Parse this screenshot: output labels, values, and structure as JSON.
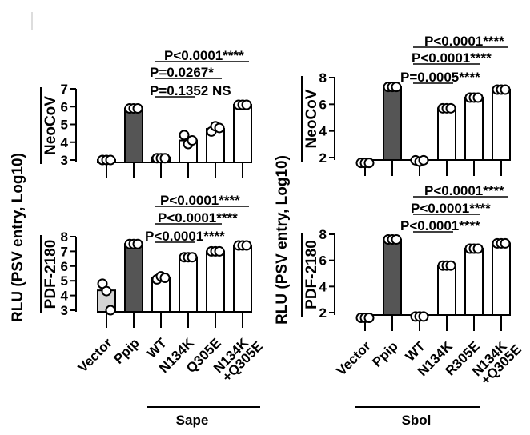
{
  "figure": {
    "ylabel": "RLU (PSV entry, Log10)",
    "panels_A_categories": [
      "Vector",
      "Ppip",
      "WT",
      "N134K",
      "Q305E",
      "N134K\n+Q305E"
    ],
    "panels_B_categories": [
      "Vector",
      "Ppip",
      "WT",
      "N134K",
      "R305E",
      "N134K\n+Q305E"
    ],
    "group_A": "Sape",
    "group_B": "Sbol"
  },
  "chart_data": [
    {
      "type": "bar",
      "title": "NeoCoV",
      "ylabel": "RLU (PSV entry, Log10)",
      "ylim": [
        2.3,
        7
      ],
      "yticks": [
        3,
        4,
        5,
        6,
        7
      ],
      "categories": [
        "Vector",
        "Ppip",
        "WT",
        "N134K",
        "Q305E",
        "N134K\n+Q305E"
      ],
      "values": [
        3.0,
        5.9,
        3.15,
        4.1,
        4.75,
        6.1
      ],
      "points": [
        [
          3.0,
          3.0,
          3.0
        ],
        [
          5.9,
          5.9,
          5.9
        ],
        [
          3.1,
          3.1,
          3.1
        ],
        [
          4.4,
          3.9,
          4.1
        ],
        [
          4.6,
          4.9,
          4.8
        ],
        [
          6.1,
          6.1,
          6.1
        ]
      ],
      "bar_fills": [
        "#d4d4d4",
        "#555555",
        "#ffffff",
        "#ffffff",
        "#ffffff",
        "#ffffff"
      ],
      "annotations": [
        {
          "text": "P<0.0001****",
          "from": "WT",
          "to": "N134K\n+Q305E"
        },
        {
          "text": "P=0.0267*",
          "from": "WT",
          "to": "Q305E"
        },
        {
          "text": "P=0.1352 NS",
          "from": "WT",
          "to": "N134K"
        }
      ]
    },
    {
      "type": "bar",
      "title": "PDF-2180",
      "ylabel": "RLU (PSV entry, Log10)",
      "ylim": [
        2.3,
        8
      ],
      "yticks": [
        3,
        4,
        5,
        6,
        7,
        8
      ],
      "categories": [
        "Vector",
        "Ppip",
        "WT",
        "N134K",
        "Q305E",
        "N134K\n+Q305E"
      ],
      "values": [
        4.35,
        7.5,
        5.2,
        6.6,
        7.0,
        7.4
      ],
      "points": [
        [
          4.8,
          4.3,
          3.0
        ],
        [
          7.5,
          7.5,
          7.5
        ],
        [
          5.1,
          5.3,
          5.2
        ],
        [
          6.6,
          6.6,
          6.6
        ],
        [
          7.0,
          7.0,
          7.0
        ],
        [
          7.4,
          7.4,
          7.4
        ]
      ],
      "bar_fills": [
        "#d4d4d4",
        "#555555",
        "#ffffff",
        "#ffffff",
        "#ffffff",
        "#ffffff"
      ],
      "annotations": [
        {
          "text": "P<0.0001****",
          "from": "WT",
          "to": "N134K\n+Q305E"
        },
        {
          "text": "P<0.0001****",
          "from": "WT",
          "to": "Q305E"
        },
        {
          "text": "P<0.0001****",
          "from": "WT",
          "to": "N134K"
        }
      ]
    },
    {
      "type": "bar",
      "title": "NeoCoV",
      "ylabel": "RLU (PSV entry, Log10)",
      "ylim": [
        1.3,
        8
      ],
      "yticks": [
        2,
        4,
        6,
        8
      ],
      "categories": [
        "Vector",
        "Ppip",
        "WT",
        "N134K",
        "R305E",
        "N134K\n+Q305E"
      ],
      "values": [
        1.6,
        7.3,
        1.7,
        5.7,
        6.5,
        7.1
      ],
      "points": [
        [
          1.6,
          1.6,
          1.6
        ],
        [
          7.3,
          7.3,
          7.3
        ],
        [
          1.8,
          1.7,
          1.8
        ],
        [
          5.7,
          5.7,
          5.7
        ],
        [
          6.5,
          6.5,
          6.5
        ],
        [
          7.1,
          7.1,
          7.1
        ]
      ],
      "bar_fills": [
        "#d4d4d4",
        "#555555",
        "#ffffff",
        "#ffffff",
        "#ffffff",
        "#ffffff"
      ],
      "annotations": [
        {
          "text": "P<0.0001****",
          "from": "WT",
          "to": "N134K\n+Q305E"
        },
        {
          "text": "P<0.0001****",
          "from": "WT",
          "to": "R305E"
        },
        {
          "text": "P=0.0005****",
          "from": "WT",
          "to": "N134K"
        }
      ]
    },
    {
      "type": "bar",
      "title": "PDF-2180",
      "ylabel": "RLU (PSV entry, Log10)",
      "ylim": [
        1.3,
        8
      ],
      "yticks": [
        2,
        4,
        6,
        8
      ],
      "categories": [
        "Vector",
        "Ppip",
        "WT",
        "N134K",
        "R305E",
        "N134K\n+Q305E"
      ],
      "values": [
        1.6,
        7.6,
        1.7,
        5.6,
        6.9,
        7.3
      ],
      "points": [
        [
          1.6,
          1.6,
          1.6
        ],
        [
          7.6,
          7.6,
          7.6
        ],
        [
          1.7,
          1.7,
          1.7
        ],
        [
          5.6,
          5.6,
          5.6
        ],
        [
          6.9,
          6.9,
          6.9
        ],
        [
          7.3,
          7.3,
          7.3
        ]
      ],
      "bar_fills": [
        "#d4d4d4",
        "#555555",
        "#ffffff",
        "#ffffff",
        "#ffffff",
        "#ffffff"
      ],
      "annotations": [
        {
          "text": "P<0.0001****",
          "from": "WT",
          "to": "N134K\n+Q305E"
        },
        {
          "text": "P<0.0001****",
          "from": "WT",
          "to": "R305E"
        },
        {
          "text": "P<0.0001****",
          "from": "WT",
          "to": "N134K"
        }
      ]
    }
  ]
}
